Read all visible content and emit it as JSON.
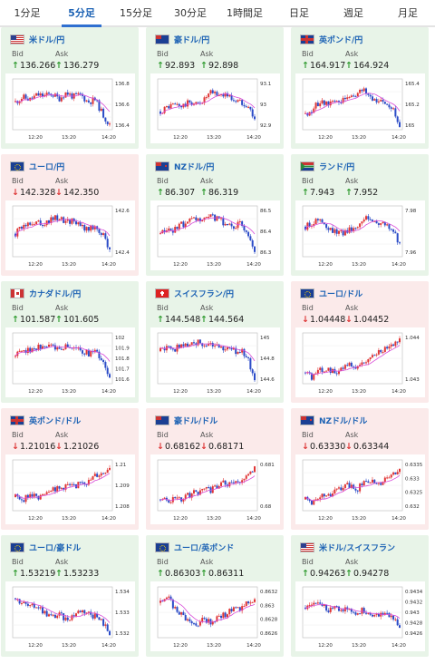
{
  "tabs": [
    {
      "label": "1分足",
      "active": false
    },
    {
      "label": "5分足",
      "active": true
    },
    {
      "label": "15分足",
      "active": false
    },
    {
      "label": "30分足",
      "active": false
    },
    {
      "label": "1時間足",
      "active": false
    },
    {
      "label": "日足",
      "active": false
    },
    {
      "label": "週足",
      "active": false
    },
    {
      "label": "月足",
      "active": false
    }
  ],
  "labels": {
    "bid": "Bid",
    "ask": "Ask"
  },
  "colors": {
    "up_bg": "#e8f4e8",
    "down_bg": "#fbeaea",
    "candle_up": "#e03535",
    "candle_down": "#2b4bc7",
    "ma": "#d84bd8",
    "arrow_up": "#2d9a2d",
    "arrow_down": "#dd3333",
    "title": "#1c62b4"
  },
  "cards": [
    {
      "name": "usd-jpy",
      "title": "米ドル/円",
      "flag": "us",
      "dir": "up",
      "bid": "136.266",
      "ask": "136.279",
      "yticks": [
        "136.8",
        "136.6",
        "136.4"
      ],
      "xticks": [
        "12:20",
        "13:20",
        "14:20"
      ],
      "trend": [
        0.55,
        0.65,
        0.6,
        0.7,
        0.68,
        0.72,
        0.62,
        0.75,
        0.66,
        0.7,
        0.55,
        0.6,
        0.3,
        0.05
      ]
    },
    {
      "name": "aud-jpy",
      "title": "豪ドル/円",
      "flag": "au",
      "dir": "up",
      "bid": "92.893",
      "ask": "92.898",
      "yticks": [
        "93.1",
        "93",
        "92.9"
      ],
      "xticks": [
        "12:20",
        "13:20",
        "14:20"
      ],
      "trend": [
        0.35,
        0.45,
        0.5,
        0.45,
        0.55,
        0.5,
        0.6,
        0.75,
        0.7,
        0.72,
        0.6,
        0.55,
        0.5,
        0.2
      ]
    },
    {
      "name": "gbp-jpy",
      "title": "英ポンド/円",
      "flag": "gb",
      "dir": "up",
      "bid": "164.917",
      "ask": "164.924",
      "yticks": [
        "165.4",
        "165.2",
        "165"
      ],
      "xticks": [
        "12:20",
        "13:20",
        "14:20"
      ],
      "trend": [
        0.3,
        0.4,
        0.55,
        0.5,
        0.6,
        0.55,
        0.65,
        0.7,
        0.8,
        0.65,
        0.6,
        0.55,
        0.45,
        0.05
      ]
    },
    {
      "name": "eur-jpy",
      "title": "ユーロ/円",
      "flag": "eu",
      "dir": "down",
      "bid": "142.328",
      "ask": "142.350",
      "yticks": [
        "142.6",
        "142.4"
      ],
      "xticks": [
        "12:20",
        "13:20",
        "14:20"
      ],
      "trend": [
        0.45,
        0.6,
        0.7,
        0.72,
        0.68,
        0.75,
        0.8,
        0.7,
        0.75,
        0.6,
        0.55,
        0.6,
        0.45,
        0.1
      ]
    },
    {
      "name": "nzd-jpy",
      "title": "NZドル/円",
      "flag": "nz",
      "dir": "up",
      "bid": "86.307",
      "ask": "86.319",
      "yticks": [
        "86.5",
        "86.4",
        "86.3"
      ],
      "xticks": [
        "12:20",
        "13:20",
        "14:20"
      ],
      "trend": [
        0.45,
        0.5,
        0.55,
        0.65,
        0.7,
        0.75,
        0.72,
        0.8,
        0.75,
        0.65,
        0.6,
        0.65,
        0.5,
        0.1
      ]
    },
    {
      "name": "zar-jpy",
      "title": "ランド/円",
      "flag": "za",
      "dir": "up",
      "bid": "7.943",
      "ask": "7.952",
      "yticks": [
        "7.98",
        "7.96"
      ],
      "xticks": [
        "12:20",
        "13:20",
        "14:20"
      ],
      "trend": [
        0.6,
        0.7,
        0.75,
        0.55,
        0.5,
        0.45,
        0.55,
        0.6,
        0.8,
        0.75,
        0.7,
        0.65,
        0.55,
        0.2
      ]
    },
    {
      "name": "cad-jpy",
      "title": "カナダドル/円",
      "flag": "ca",
      "dir": "up",
      "bid": "101.587",
      "ask": "101.605",
      "yticks": [
        "102",
        "101.9",
        "101.8",
        "101.7",
        "101.6"
      ],
      "xticks": [
        "12:20",
        "13:20",
        "14:20"
      ],
      "trend": [
        0.55,
        0.7,
        0.65,
        0.75,
        0.72,
        0.8,
        0.7,
        0.78,
        0.72,
        0.68,
        0.6,
        0.65,
        0.45,
        0.1
      ]
    },
    {
      "name": "chf-jpy",
      "title": "スイスフラン/円",
      "flag": "ch",
      "dir": "up",
      "bid": "144.548",
      "ask": "144.564",
      "yticks": [
        "145",
        "144.8",
        "144.6"
      ],
      "xticks": [
        "12:20",
        "13:20",
        "14:20"
      ],
      "trend": [
        0.65,
        0.75,
        0.7,
        0.8,
        0.78,
        0.85,
        0.82,
        0.75,
        0.8,
        0.7,
        0.65,
        0.68,
        0.5,
        0.1
      ]
    },
    {
      "name": "eur-usd",
      "title": "ユーロ/ドル",
      "flag": "eu",
      "dir": "down",
      "bid": "1.04448",
      "ask": "1.04452",
      "yticks": [
        "1.044",
        "1.043"
      ],
      "xticks": [
        "12:20",
        "13:20",
        "14:20"
      ],
      "trend": [
        0.2,
        0.1,
        0.25,
        0.3,
        0.2,
        0.3,
        0.35,
        0.3,
        0.4,
        0.55,
        0.6,
        0.75,
        0.8,
        0.9
      ]
    },
    {
      "name": "gbp-usd",
      "title": "英ポンド/ドル",
      "flag": "gb",
      "dir": "down",
      "bid": "1.21016",
      "ask": "1.21026",
      "yticks": [
        "1.21",
        "1.209",
        "1.208"
      ],
      "xticks": [
        "12:20",
        "13:20",
        "14:20"
      ],
      "trend": [
        0.25,
        0.2,
        0.3,
        0.25,
        0.35,
        0.45,
        0.4,
        0.5,
        0.45,
        0.6,
        0.55,
        0.7,
        0.75,
        0.9
      ]
    },
    {
      "name": "aud-usd",
      "title": "豪ドル/ドル",
      "flag": "au",
      "dir": "down",
      "bid": "0.68162",
      "ask": "0.68171",
      "yticks": [
        "0.681",
        "0.68"
      ],
      "xticks": [
        "12:20",
        "13:20",
        "14:20"
      ],
      "trend": [
        0.2,
        0.15,
        0.25,
        0.2,
        0.3,
        0.35,
        0.45,
        0.4,
        0.5,
        0.55,
        0.5,
        0.6,
        0.7,
        0.85
      ]
    },
    {
      "name": "nzd-usd",
      "title": "NZドル/ドル",
      "flag": "nz",
      "dir": "down",
      "bid": "0.63330",
      "ask": "0.63344",
      "yticks": [
        "0.6335",
        "0.633",
        "0.6325",
        "0.632"
      ],
      "xticks": [
        "12:20",
        "13:20",
        "14:20"
      ],
      "trend": [
        0.2,
        0.15,
        0.3,
        0.25,
        0.35,
        0.45,
        0.5,
        0.4,
        0.55,
        0.6,
        0.5,
        0.65,
        0.7,
        0.85
      ]
    },
    {
      "name": "eur-aud",
      "title": "ユーロ/豪ドル",
      "flag": "eu",
      "dir": "up",
      "bid": "1.53219",
      "ask": "1.53233",
      "yticks": [
        "1.534",
        "1.533",
        "1.532"
      ],
      "xticks": [
        "12:20",
        "13:20",
        "14:20"
      ],
      "trend": [
        0.8,
        0.7,
        0.6,
        0.65,
        0.5,
        0.4,
        0.45,
        0.35,
        0.45,
        0.55,
        0.5,
        0.4,
        0.3,
        0.05
      ]
    },
    {
      "name": "eur-gbp",
      "title": "ユーロ/英ポンド",
      "flag": "eu",
      "dir": "up",
      "bid": "0.86303",
      "ask": "0.86311",
      "yticks": [
        "0.8632",
        "0.863",
        "0.8628",
        "0.8626"
      ],
      "xticks": [
        "12:20",
        "13:20",
        "14:20"
      ],
      "trend": [
        0.7,
        0.8,
        0.6,
        0.45,
        0.3,
        0.25,
        0.35,
        0.3,
        0.4,
        0.45,
        0.6,
        0.55,
        0.7,
        0.75
      ]
    },
    {
      "name": "usd-chf",
      "title": "米ドル/スイスフラン",
      "flag": "us",
      "dir": "up",
      "bid": "0.94263",
      "ask": "0.94278",
      "yticks": [
        "0.9434",
        "0.9432",
        "0.943",
        "0.9428",
        "0.9426"
      ],
      "xticks": [
        "12:20",
        "13:20",
        "14:20"
      ],
      "trend": [
        0.6,
        0.75,
        0.7,
        0.55,
        0.65,
        0.5,
        0.6,
        0.45,
        0.55,
        0.5,
        0.4,
        0.45,
        0.35,
        0.2
      ]
    }
  ]
}
